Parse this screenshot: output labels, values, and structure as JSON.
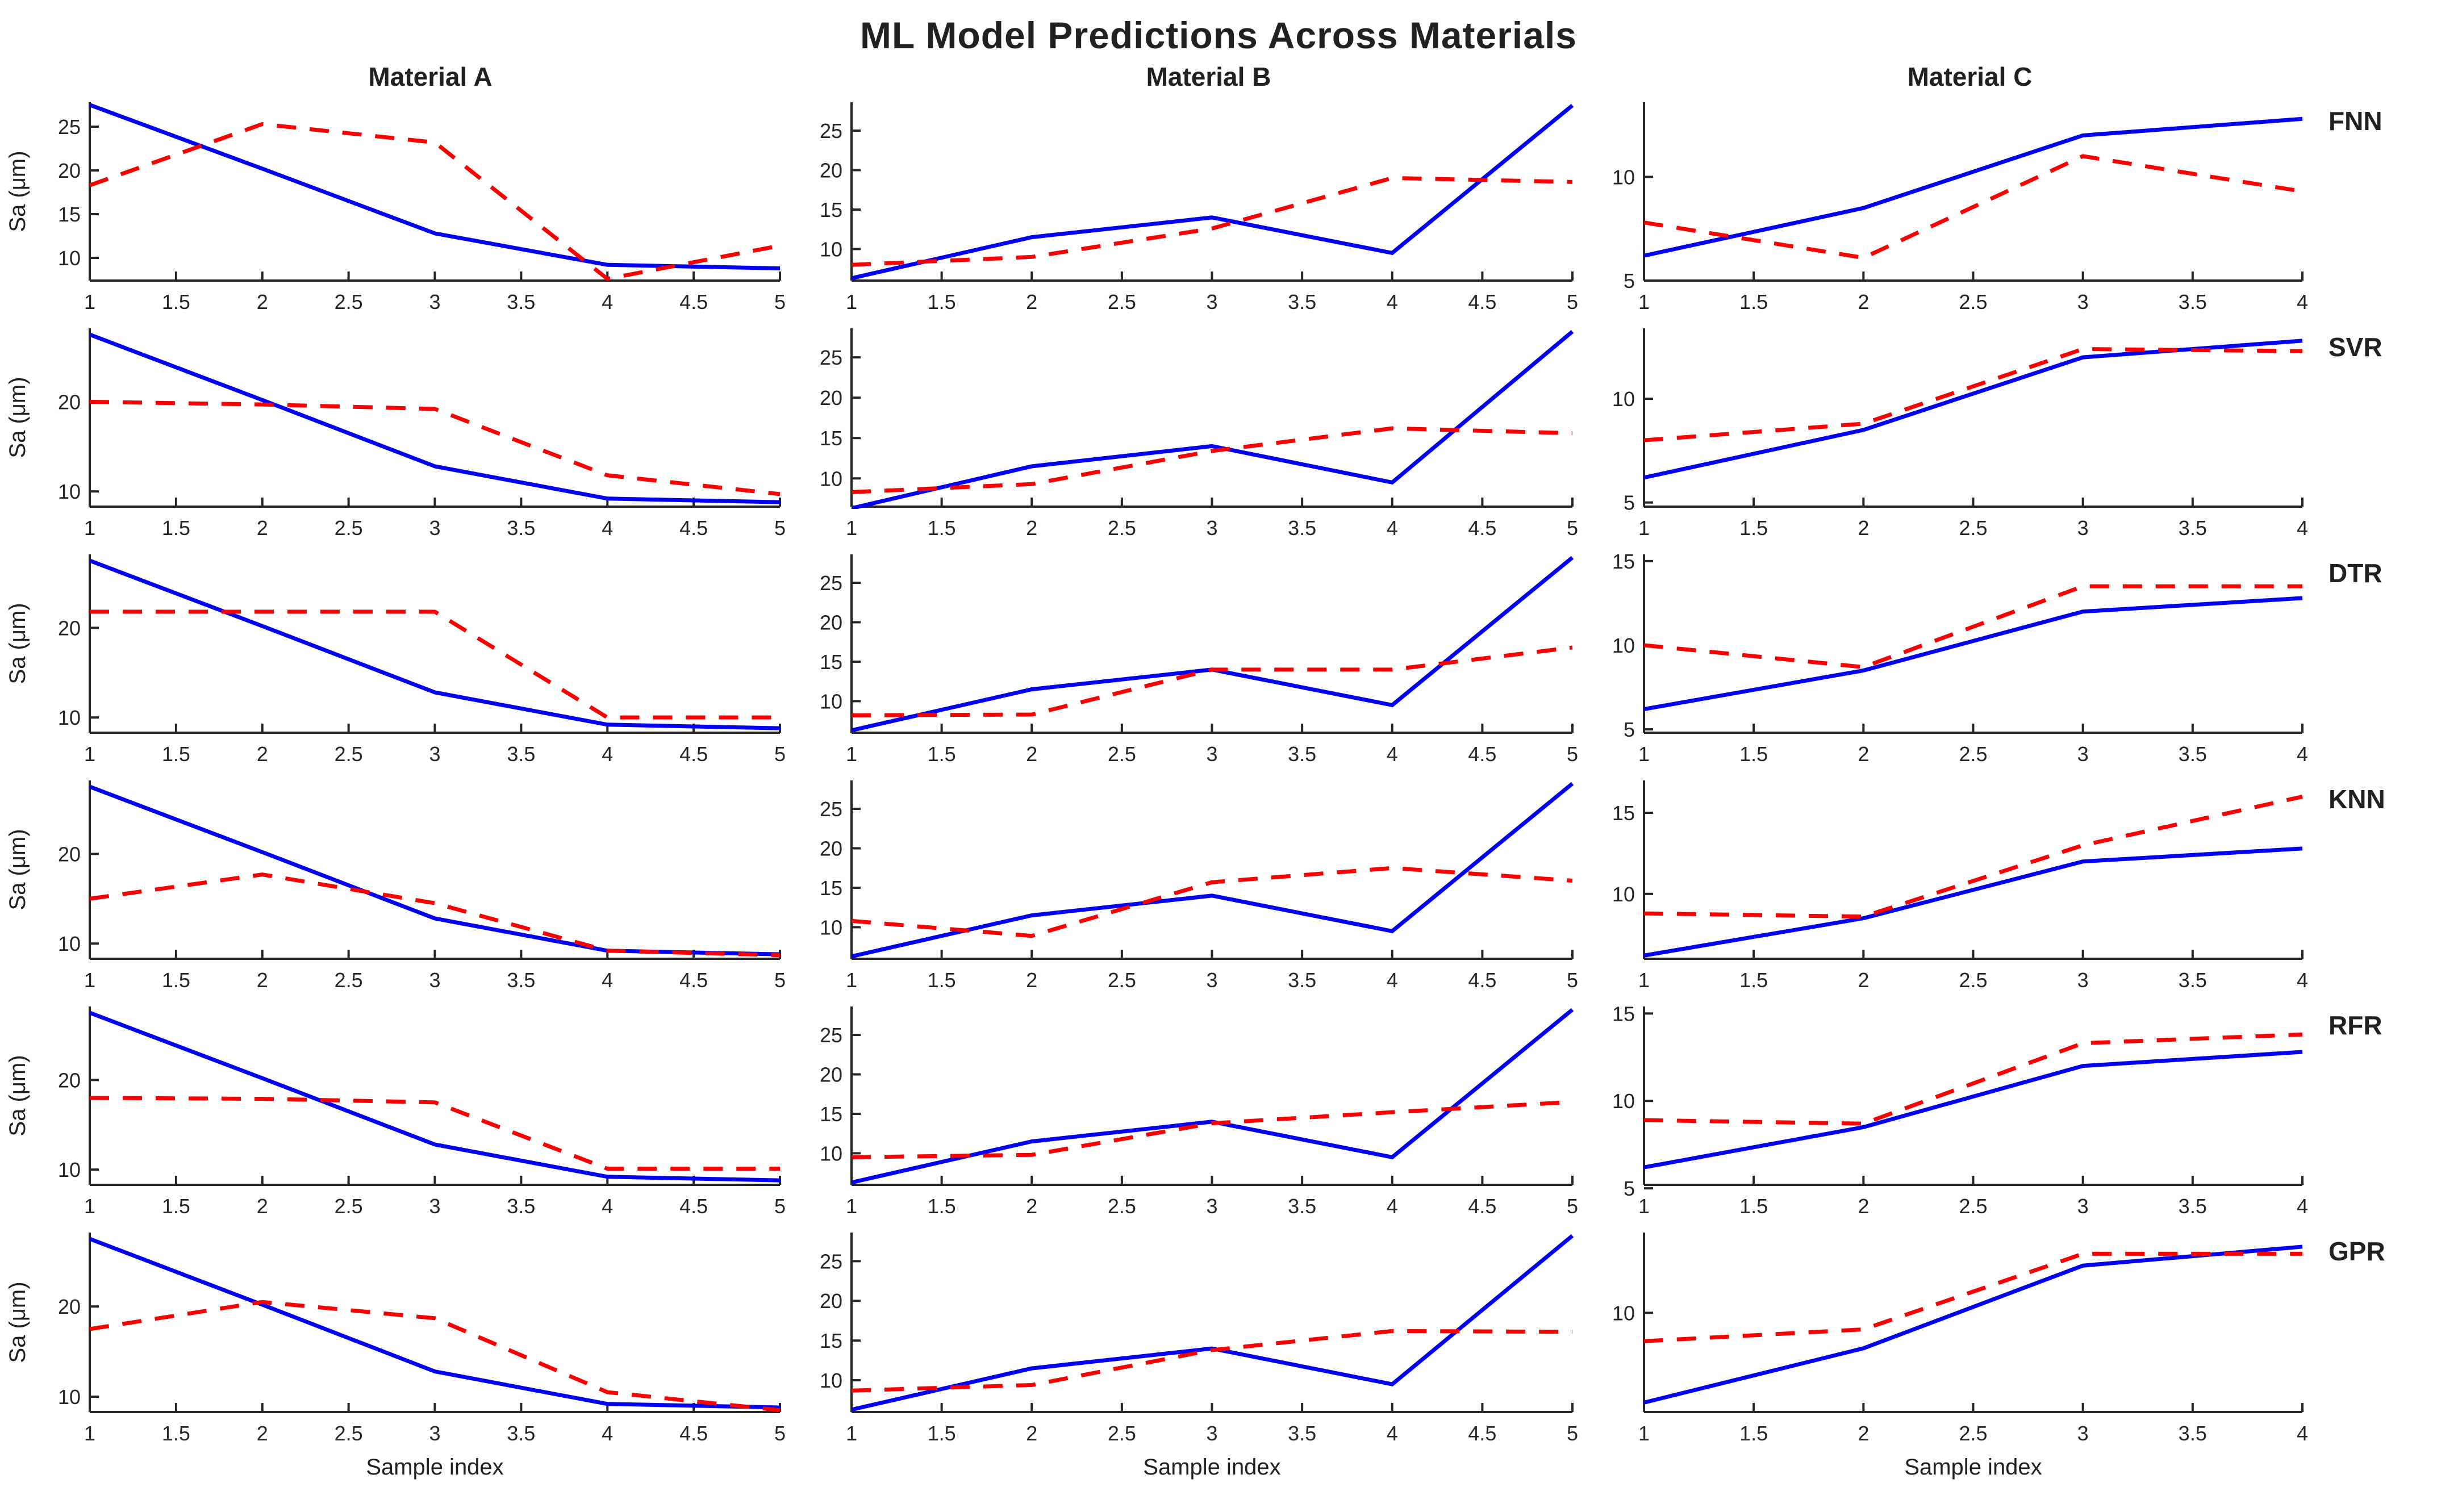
{
  "title": "ML Model Predictions Across Materials",
  "chart_data": {
    "type": "line",
    "title": "ML Model Predictions Across Materials",
    "xlabel": "Sample index",
    "ylabel": "Sa (μm)",
    "legend": "none",
    "grid": "off",
    "colors": {
      "actual_line": "#0000f2",
      "predicted_line": "#fa0000",
      "axis": "#262626",
      "text": "#212121"
    },
    "line_styles": {
      "actual": "solid-blue",
      "predicted": "dashed-red"
    },
    "columns": [
      {
        "title": "Material A",
        "x": [
          1,
          2,
          3,
          4,
          5
        ],
        "xlim": [
          1,
          5
        ],
        "xticks": [
          1,
          1.5,
          2,
          2.5,
          3,
          3.5,
          4,
          4.5,
          5
        ],
        "actual": [
          27.5,
          20.2,
          12.8,
          9.2,
          8.8
        ]
      },
      {
        "title": "Material B",
        "x": [
          1,
          2,
          3,
          4,
          5
        ],
        "xlim": [
          1,
          5
        ],
        "xticks": [
          1,
          1.5,
          2,
          2.5,
          3,
          3.5,
          4,
          4.5,
          5
        ],
        "actual": [
          6.3,
          11.5,
          14.0,
          9.5,
          28.2
        ]
      },
      {
        "title": "Material C",
        "x": [
          1,
          2,
          3,
          4
        ],
        "xlim": [
          1,
          4
        ],
        "xticks": [
          1,
          1.5,
          2,
          2.5,
          3,
          3.5,
          4
        ],
        "actual": [
          6.2,
          8.5,
          12.0,
          12.8
        ]
      }
    ],
    "rows": [
      {
        "label": "FNN"
      },
      {
        "label": "SVR"
      },
      {
        "label": "DTR"
      },
      {
        "label": "KNN"
      },
      {
        "label": "RFR"
      },
      {
        "label": "GPR"
      }
    ],
    "cells": [
      {
        "model": "FNN",
        "material": "Material A",
        "predicted": [
          18.3,
          25.3,
          23.2,
          7.6,
          11.4
        ],
        "ylim": [
          7.4,
          27.8
        ],
        "yticks": [
          10,
          15,
          20,
          25
        ]
      },
      {
        "model": "FNN",
        "material": "Material B",
        "predicted": [
          8.0,
          9.0,
          12.6,
          19.0,
          18.5
        ],
        "ylim": [
          6.0,
          28.6
        ],
        "yticks": [
          10,
          15,
          20,
          25
        ]
      },
      {
        "model": "FNN",
        "material": "Material C",
        "predicted": [
          7.8,
          6.1,
          11.0,
          9.3
        ],
        "ylim": [
          5.0,
          13.6
        ],
        "yticks": [
          5,
          10
        ]
      },
      {
        "model": "SVR",
        "material": "Material A",
        "predicted": [
          20.0,
          19.7,
          19.2,
          11.8,
          9.7
        ],
        "ylim": [
          8.3,
          28.2
        ],
        "yticks": [
          10,
          20
        ]
      },
      {
        "model": "SVR",
        "material": "Material B",
        "predicted": [
          8.3,
          9.3,
          13.4,
          16.2,
          15.6
        ],
        "ylim": [
          6.5,
          28.6
        ],
        "yticks": [
          10,
          15,
          20,
          25
        ]
      },
      {
        "model": "SVR",
        "material": "Material C",
        "predicted": [
          8.0,
          8.8,
          12.4,
          12.3
        ],
        "ylim": [
          4.8,
          13.4
        ],
        "yticks": [
          5,
          10
        ]
      },
      {
        "model": "DTR",
        "material": "Material A",
        "predicted": [
          21.8,
          21.8,
          21.8,
          10.0,
          10.0
        ],
        "ylim": [
          8.3,
          28.2
        ],
        "yticks": [
          10,
          20
        ]
      },
      {
        "model": "DTR",
        "material": "Material B",
        "predicted": [
          8.2,
          8.3,
          14.0,
          14.0,
          16.8
        ],
        "ylim": [
          6.0,
          28.6
        ],
        "yticks": [
          10,
          15,
          20,
          25
        ]
      },
      {
        "model": "DTR",
        "material": "Material C",
        "predicted": [
          10.0,
          8.7,
          13.5,
          13.5
        ],
        "ylim": [
          4.8,
          15.4
        ],
        "yticks": [
          5,
          10,
          15
        ]
      },
      {
        "model": "KNN",
        "material": "Material A",
        "predicted": [
          15.0,
          17.7,
          14.5,
          9.2,
          8.7
        ],
        "ylim": [
          8.3,
          28.2
        ],
        "yticks": [
          10,
          20
        ]
      },
      {
        "model": "KNN",
        "material": "Material B",
        "predicted": [
          10.8,
          8.9,
          15.7,
          17.5,
          15.9
        ],
        "ylim": [
          6.0,
          28.6
        ],
        "yticks": [
          10,
          15,
          20,
          25
        ]
      },
      {
        "model": "KNN",
        "material": "Material C",
        "predicted": [
          8.8,
          8.6,
          13.0,
          16.0
        ],
        "ylim": [
          6.0,
          17.0
        ],
        "yticks": [
          10,
          15
        ]
      },
      {
        "model": "RFR",
        "material": "Material A",
        "predicted": [
          18.0,
          17.9,
          17.5,
          10.1,
          10.1
        ],
        "ylim": [
          8.3,
          28.2
        ],
        "yticks": [
          10,
          20
        ]
      },
      {
        "model": "RFR",
        "material": "Material B",
        "predicted": [
          9.5,
          9.8,
          13.8,
          15.2,
          16.5
        ],
        "ylim": [
          6.0,
          28.6
        ],
        "yticks": [
          10,
          15,
          20,
          25
        ]
      },
      {
        "model": "RFR",
        "material": "Material C",
        "predicted": [
          8.9,
          8.7,
          13.3,
          13.8
        ],
        "ylim": [
          5.2,
          15.4
        ],
        "yticks": [
          5,
          10,
          15
        ]
      },
      {
        "model": "GPR",
        "material": "Material A",
        "predicted": [
          17.5,
          20.5,
          18.7,
          10.5,
          8.5
        ],
        "ylim": [
          8.3,
          28.2
        ],
        "yticks": [
          10,
          20
        ]
      },
      {
        "model": "GPR",
        "material": "Material B",
        "predicted": [
          8.7,
          9.4,
          13.8,
          16.2,
          16.1
        ],
        "ylim": [
          6.0,
          28.6
        ],
        "yticks": [
          10,
          15,
          20,
          25
        ]
      },
      {
        "model": "GPR",
        "material": "Material C",
        "predicted": [
          8.8,
          9.3,
          12.5,
          12.5
        ],
        "ylim": [
          5.8,
          13.4
        ],
        "yticks": [
          10
        ]
      }
    ]
  }
}
